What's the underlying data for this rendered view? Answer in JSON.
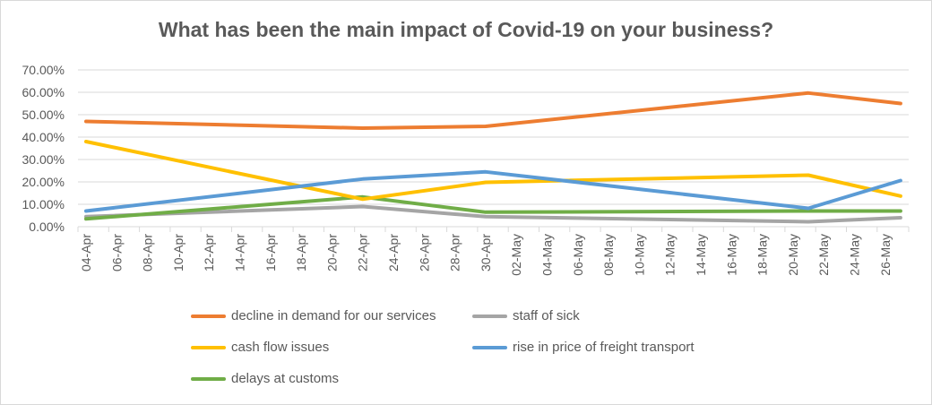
{
  "chart_data": {
    "type": "line",
    "title": "What has been the main impact of Covid-19 on your business?",
    "xlabel": "",
    "ylabel": "",
    "x": [
      "04-Apr",
      "22-Apr",
      "30-Apr",
      "21-May",
      "27-May"
    ],
    "x_tick_labels": [
      "04-Apr",
      "06-Apr",
      "08-Apr",
      "10-Apr",
      "12-Apr",
      "14-Apr",
      "16-Apr",
      "18-Apr",
      "20-Apr",
      "22-Apr",
      "24-Apr",
      "26-Apr",
      "28-Apr",
      "30-Apr",
      "02-May",
      "04-May",
      "06-May",
      "08-May",
      "10-May",
      "12-May",
      "14-May",
      "16-May",
      "18-May",
      "20-May",
      "22-May",
      "24-May",
      "26-May"
    ],
    "y_tick_labels": [
      "0.00%",
      "10.00%",
      "20.00%",
      "30.00%",
      "40.00%",
      "50.00%",
      "60.00%",
      "70.00%"
    ],
    "ylim": [
      0,
      70
    ],
    "grid": true,
    "legend_placement": "bottom",
    "series": [
      {
        "name": "decline in demand for our services",
        "color": "#ed7d31",
        "values": [
          47,
          44,
          44.8,
          59.7,
          55
        ]
      },
      {
        "name": "staff of sick",
        "color": "#a5a5a5",
        "values": [
          4.5,
          9,
          4.5,
          2.2,
          4
        ]
      },
      {
        "name": "cash flow issues",
        "color": "#ffc000",
        "values": [
          38,
          12.3,
          19.8,
          23,
          13.7
        ]
      },
      {
        "name": "rise in price of freight transport",
        "color": "#5b9bd5",
        "values": [
          7,
          21.3,
          24.5,
          8.2,
          20.6
        ]
      },
      {
        "name": "delays at customs",
        "color": "#70ad47",
        "values": [
          3.5,
          13.3,
          6.5,
          7,
          7
        ]
      }
    ]
  }
}
